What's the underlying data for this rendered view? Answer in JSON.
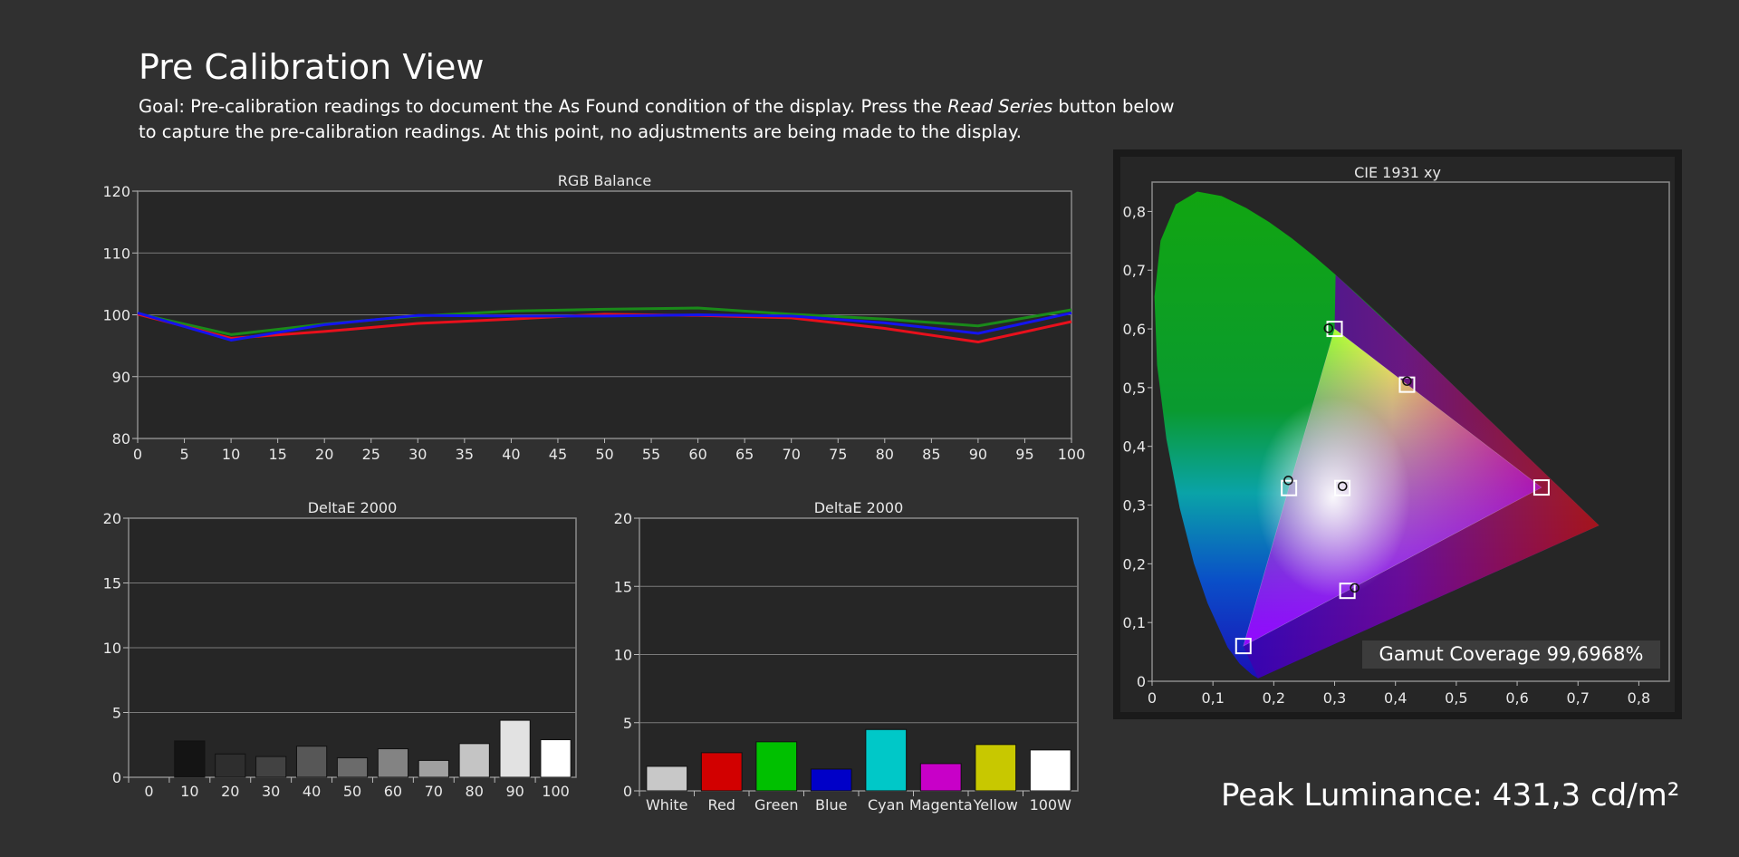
{
  "page": {
    "title": "Pre Calibration View",
    "goal_prefix": "Goal: Pre-calibration readings to document the As Found condition of the display. Press the ",
    "goal_emphasis": "Read Series",
    "goal_suffix": " button below to capture the pre-calibration readings. At this point, no adjustments are being made to the display.",
    "peak_luminance": "Peak Luminance: 431,3 cd/m²",
    "gamut_coverage": "Gamut Coverage 99,6968%"
  },
  "chart_data": [
    {
      "id": "rgb",
      "type": "line",
      "title": "RGB Balance",
      "x": [
        0,
        10,
        20,
        30,
        40,
        50,
        60,
        70,
        80,
        90,
        100
      ],
      "xticks": [
        0,
        5,
        10,
        15,
        20,
        25,
        30,
        35,
        40,
        45,
        50,
        55,
        60,
        65,
        70,
        75,
        80,
        85,
        90,
        95,
        100
      ],
      "ylim": [
        80,
        120
      ],
      "yticks": [
        80,
        90,
        100,
        110,
        120
      ],
      "grid": true,
      "series": [
        {
          "color": "#1a8a1a",
          "values": [
            100.2,
            96.8,
            98.5,
            99.8,
            100.6,
            100.9,
            101.1,
            100.1,
            99.3,
            98.2,
            100.8
          ]
        },
        {
          "color": "#e8101c",
          "values": [
            100.1,
            96.2,
            97.3,
            98.6,
            99.3,
            100.1,
            99.9,
            99.5,
            97.8,
            95.6,
            98.9
          ]
        },
        {
          "color": "#1414ee",
          "values": [
            100.3,
            95.9,
            98.4,
            99.9,
            99.8,
            99.8,
            100.0,
            99.8,
            98.7,
            97.0,
            100.3
          ]
        }
      ]
    },
    {
      "id": "de_gray",
      "type": "bar",
      "title": "DeltaE 2000",
      "categories": [
        "0",
        "10",
        "20",
        "30",
        "40",
        "50",
        "60",
        "70",
        "80",
        "90",
        "100"
      ],
      "values": [
        0,
        2.8,
        1.8,
        1.6,
        2.4,
        1.5,
        2.2,
        1.3,
        2.6,
        4.4,
        2.9
      ],
      "colors": [
        "#000000",
        "#141414",
        "#2e2e2e",
        "#424242",
        "#575757",
        "#6b6b6b",
        "#838383",
        "#a0a0a0",
        "#c4c4c4",
        "#e2e2e2",
        "#ffffff"
      ],
      "ylim": [
        0,
        20
      ],
      "yticks": [
        0,
        5,
        10,
        15,
        20
      ],
      "grid": true
    },
    {
      "id": "de_color",
      "type": "bar",
      "title": "DeltaE 2000",
      "categories": [
        "White",
        "Red",
        "Green",
        "Blue",
        "Cyan",
        "Magenta",
        "Yellow",
        "100W"
      ],
      "values": [
        1.8,
        2.8,
        3.6,
        1.6,
        4.5,
        2.0,
        3.4,
        3.0
      ],
      "colors": [
        "#c8c8c8",
        "#d20000",
        "#00c000",
        "#0000c8",
        "#00c8c8",
        "#c800c8",
        "#c8c800",
        "#ffffff"
      ],
      "ylim": [
        0,
        20
      ],
      "yticks": [
        0,
        5,
        10,
        15,
        20
      ],
      "grid": true
    },
    {
      "id": "cie",
      "type": "scatter",
      "title": "CIE 1931 xy",
      "xlim": [
        0,
        0.85
      ],
      "ylim": [
        0,
        0.85
      ],
      "xticks": [
        "0",
        "0,1",
        "0,2",
        "0,3",
        "0,4",
        "0,5",
        "0,6",
        "0,7",
        "0,8"
      ],
      "yticks": [
        "0",
        "0,1",
        "0,2",
        "0,3",
        "0,4",
        "0,5",
        "0,6",
        "0,7",
        "0,8"
      ],
      "targets": [
        {
          "x": 0.64,
          "y": 0.33
        },
        {
          "x": 0.3,
          "y": 0.6
        },
        {
          "x": 0.15,
          "y": 0.06
        },
        {
          "x": 0.225,
          "y": 0.329
        },
        {
          "x": 0.321,
          "y": 0.154
        },
        {
          "x": 0.419,
          "y": 0.505
        },
        {
          "x": 0.3127,
          "y": 0.329
        }
      ],
      "measured": [
        {
          "x": 0.29,
          "y": 0.601
        },
        {
          "x": 0.224,
          "y": 0.342
        },
        {
          "x": 0.333,
          "y": 0.159
        },
        {
          "x": 0.419,
          "y": 0.511
        },
        {
          "x": 0.313,
          "y": 0.332
        }
      ]
    }
  ]
}
